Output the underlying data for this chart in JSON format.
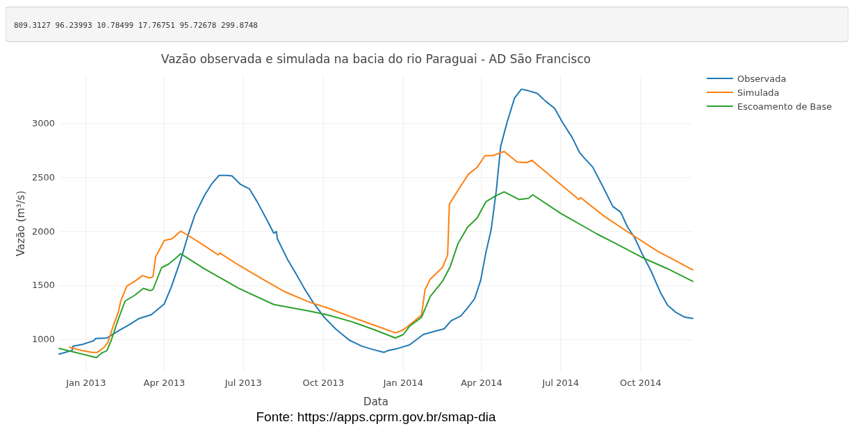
{
  "chart_data": {
    "type": "line",
    "title": "Vazão observada e simulada na bacia do rio Paraguai - AD São Francisco",
    "xlabel": "Data",
    "ylabel": "Vazão (m³/s)",
    "annotations": [
      "809.3127 96.23993 10.78499 17.76751 95.72678 299.8748",
      "Fonte: https://apps.cprm.gov.br/smap-dia"
    ],
    "xlim": [
      "2012-12-01",
      "2014-11-30"
    ],
    "ylim": [
      700,
      3450
    ],
    "xticks": [
      {
        "value": "2013-01-01",
        "label": "Jan 2013"
      },
      {
        "value": "2013-04-01",
        "label": "Apr 2013"
      },
      {
        "value": "2013-07-01",
        "label": "Jul 2013"
      },
      {
        "value": "2013-10-01",
        "label": "Oct 2013"
      },
      {
        "value": "2014-01-01",
        "label": "Jan 2014"
      },
      {
        "value": "2014-04-01",
        "label": "Apr 2014"
      },
      {
        "value": "2014-07-01",
        "label": "Jul 2014"
      },
      {
        "value": "2014-10-01",
        "label": "Oct 2014"
      }
    ],
    "yticks": [
      1000,
      1500,
      2000,
      2500,
      3000
    ],
    "grid": true,
    "legend": "top right",
    "marker": "none",
    "line_style": "solid",
    "series": [
      {
        "name": "Observada",
        "color": "#1f77b4",
        "x": [
          "2012-12-01",
          "2012-12-16",
          "2012-12-17",
          "2012-12-28",
          "2013-01-10",
          "2013-01-12",
          "2013-01-25",
          "2013-02-07",
          "2013-02-19",
          "2013-03-03",
          "2013-03-17",
          "2013-04-01",
          "2013-04-09",
          "2013-04-20",
          "2013-04-28",
          "2013-05-06",
          "2013-05-17",
          "2013-05-25",
          "2013-06-03",
          "2013-06-12",
          "2013-06-18",
          "2013-06-28",
          "2013-07-08",
          "2013-07-17",
          "2013-07-27",
          "2013-08-05",
          "2013-08-08",
          "2013-08-09",
          "2013-08-21",
          "2013-09-01",
          "2013-09-09",
          "2013-09-20",
          "2013-10-02",
          "2013-10-15",
          "2013-10-31",
          "2013-11-14",
          "2013-11-27",
          "2013-12-10",
          "2013-12-14",
          "2013-12-26",
          "2014-01-08",
          "2014-01-24",
          "2014-02-07",
          "2014-02-17",
          "2014-02-25",
          "2014-03-08",
          "2014-03-16",
          "2014-03-24",
          "2014-03-31",
          "2014-04-06",
          "2014-04-12",
          "2014-04-18",
          "2014-04-23",
          "2014-04-30",
          "2014-05-09",
          "2014-05-17",
          "2014-05-24",
          "2014-06-04",
          "2014-06-14",
          "2014-06-24",
          "2014-07-03",
          "2014-07-14",
          "2014-07-23",
          "2014-07-28",
          "2014-08-07",
          "2014-08-18",
          "2014-08-30",
          "2014-09-08",
          "2014-09-16",
          "2014-09-24",
          "2014-10-02",
          "2014-10-13",
          "2014-10-24",
          "2014-11-01",
          "2014-11-11",
          "2014-11-21",
          "2014-11-30"
        ],
        "values": [
          865,
          900,
          940,
          955,
          990,
          1010,
          1015,
          1080,
          1135,
          1195,
          1230,
          1330,
          1485,
          1740,
          1955,
          2150,
          2330,
          2435,
          2520,
          2520,
          2515,
          2435,
          2395,
          2275,
          2125,
          1985,
          2000,
          1935,
          1740,
          1590,
          1475,
          1335,
          1207,
          1100,
          994,
          940,
          908,
          882,
          897,
          919,
          951,
          1047,
          1079,
          1100,
          1175,
          1218,
          1293,
          1378,
          1549,
          1806,
          2015,
          2383,
          2789,
          3002,
          3237,
          3319,
          3306,
          3280,
          3205,
          3141,
          3013,
          2874,
          2729,
          2683,
          2596,
          2425,
          2233,
          2180,
          2041,
          1945,
          1806,
          1635,
          1432,
          1318,
          1250,
          1207,
          1197
        ]
      },
      {
        "name": "Simulada",
        "color": "#ff7f0e",
        "x": [
          "2012-12-13",
          "2012-12-28",
          "2013-01-08",
          "2013-01-14",
          "2013-01-22",
          "2013-01-26",
          "2013-02-02",
          "2013-02-07",
          "2013-02-10",
          "2013-02-17",
          "2013-02-26",
          "2013-03-07",
          "2013-03-15",
          "2013-03-19",
          "2013-03-22",
          "2013-04-01",
          "2013-04-10",
          "2013-04-20",
          "2013-04-26",
          "2013-05-17",
          "2013-06-02",
          "2013-06-04",
          "2013-06-26",
          "2013-07-23",
          "2013-08-18",
          "2013-09-14",
          "2013-10-06",
          "2013-11-03",
          "2013-11-29",
          "2013-12-23",
          "2014-01-01",
          "2014-01-11",
          "2014-01-22",
          "2014-01-26",
          "2014-02-01",
          "2014-02-15",
          "2014-02-21",
          "2014-02-23",
          "2014-03-05",
          "2014-03-17",
          "2014-03-27",
          "2014-04-05",
          "2014-04-14",
          "2014-04-27",
          "2014-05-12",
          "2014-05-23",
          "2014-05-29",
          "2014-06-20",
          "2014-07-22",
          "2014-07-24",
          "2014-08-21",
          "2014-09-16",
          "2014-10-21",
          "2014-10-25",
          "2014-11-30"
        ],
        "values": [
          930,
          897,
          882,
          882,
          930,
          972,
          1143,
          1250,
          1357,
          1496,
          1539,
          1592,
          1571,
          1581,
          1763,
          1917,
          1934,
          2004,
          1977,
          1870,
          1784,
          1801,
          1688,
          1560,
          1442,
          1350,
          1293,
          1207,
          1132,
          1062,
          1090,
          1154,
          1229,
          1464,
          1560,
          1667,
          1784,
          2254,
          2383,
          2532,
          2596,
          2703,
          2703,
          2742,
          2643,
          2639,
          2660,
          2510,
          2297,
          2314,
          2137,
          1998,
          1816,
          1799,
          1645
        ]
      },
      {
        "name": "Escoamento de Base",
        "color": "#2ca02c",
        "x": [
          "2012-12-01",
          "2013-01-13",
          "2013-01-19",
          "2013-01-25",
          "2013-01-30",
          "2013-02-07",
          "2013-02-15",
          "2013-02-26",
          "2013-03-08",
          "2013-03-16",
          "2013-03-19",
          "2013-03-29",
          "2013-04-06",
          "2013-04-14",
          "2013-04-20",
          "2013-05-17",
          "2013-06-26",
          "2013-08-05",
          "2013-09-14",
          "2013-10-06",
          "2013-11-03",
          "2013-11-29",
          "2013-12-23",
          "2014-01-01",
          "2014-01-08",
          "2014-01-22",
          "2014-02-01",
          "2014-02-15",
          "2014-02-24",
          "2014-03-05",
          "2014-03-16",
          "2014-03-27",
          "2014-04-06",
          "2014-04-17",
          "2014-04-27",
          "2014-05-14",
          "2014-05-25",
          "2014-05-30",
          "2014-07-01",
          "2014-08-12",
          "2014-09-02",
          "2014-10-05",
          "2014-11-01",
          "2014-11-30"
        ],
        "values": [
          919,
          833,
          876,
          897,
          994,
          1186,
          1357,
          1410,
          1474,
          1453,
          1464,
          1667,
          1699,
          1752,
          1795,
          1656,
          1474,
          1325,
          1265,
          1229,
          1165,
          1090,
          1015,
          1047,
          1122,
          1207,
          1400,
          1539,
          1677,
          1891,
          2041,
          2126,
          2276,
          2329,
          2368,
          2297,
          2308,
          2340,
          2169,
          1977,
          1891,
          1752,
          1656,
          1539
        ]
      }
    ]
  }
}
